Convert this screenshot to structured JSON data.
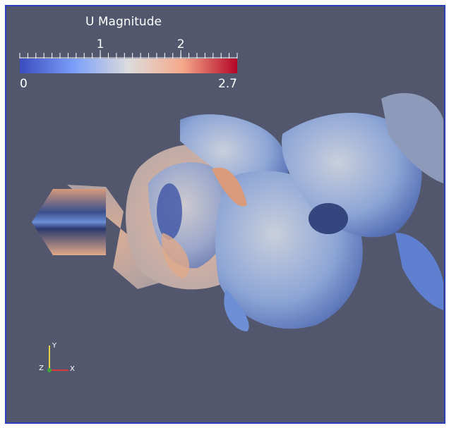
{
  "colorbar": {
    "title": "U Magnitude",
    "range": [
      0,
      2.7
    ],
    "ticks": [
      1,
      2
    ]
  },
  "axes": {
    "y": "Y",
    "z": "Z",
    "x": "X"
  }
}
